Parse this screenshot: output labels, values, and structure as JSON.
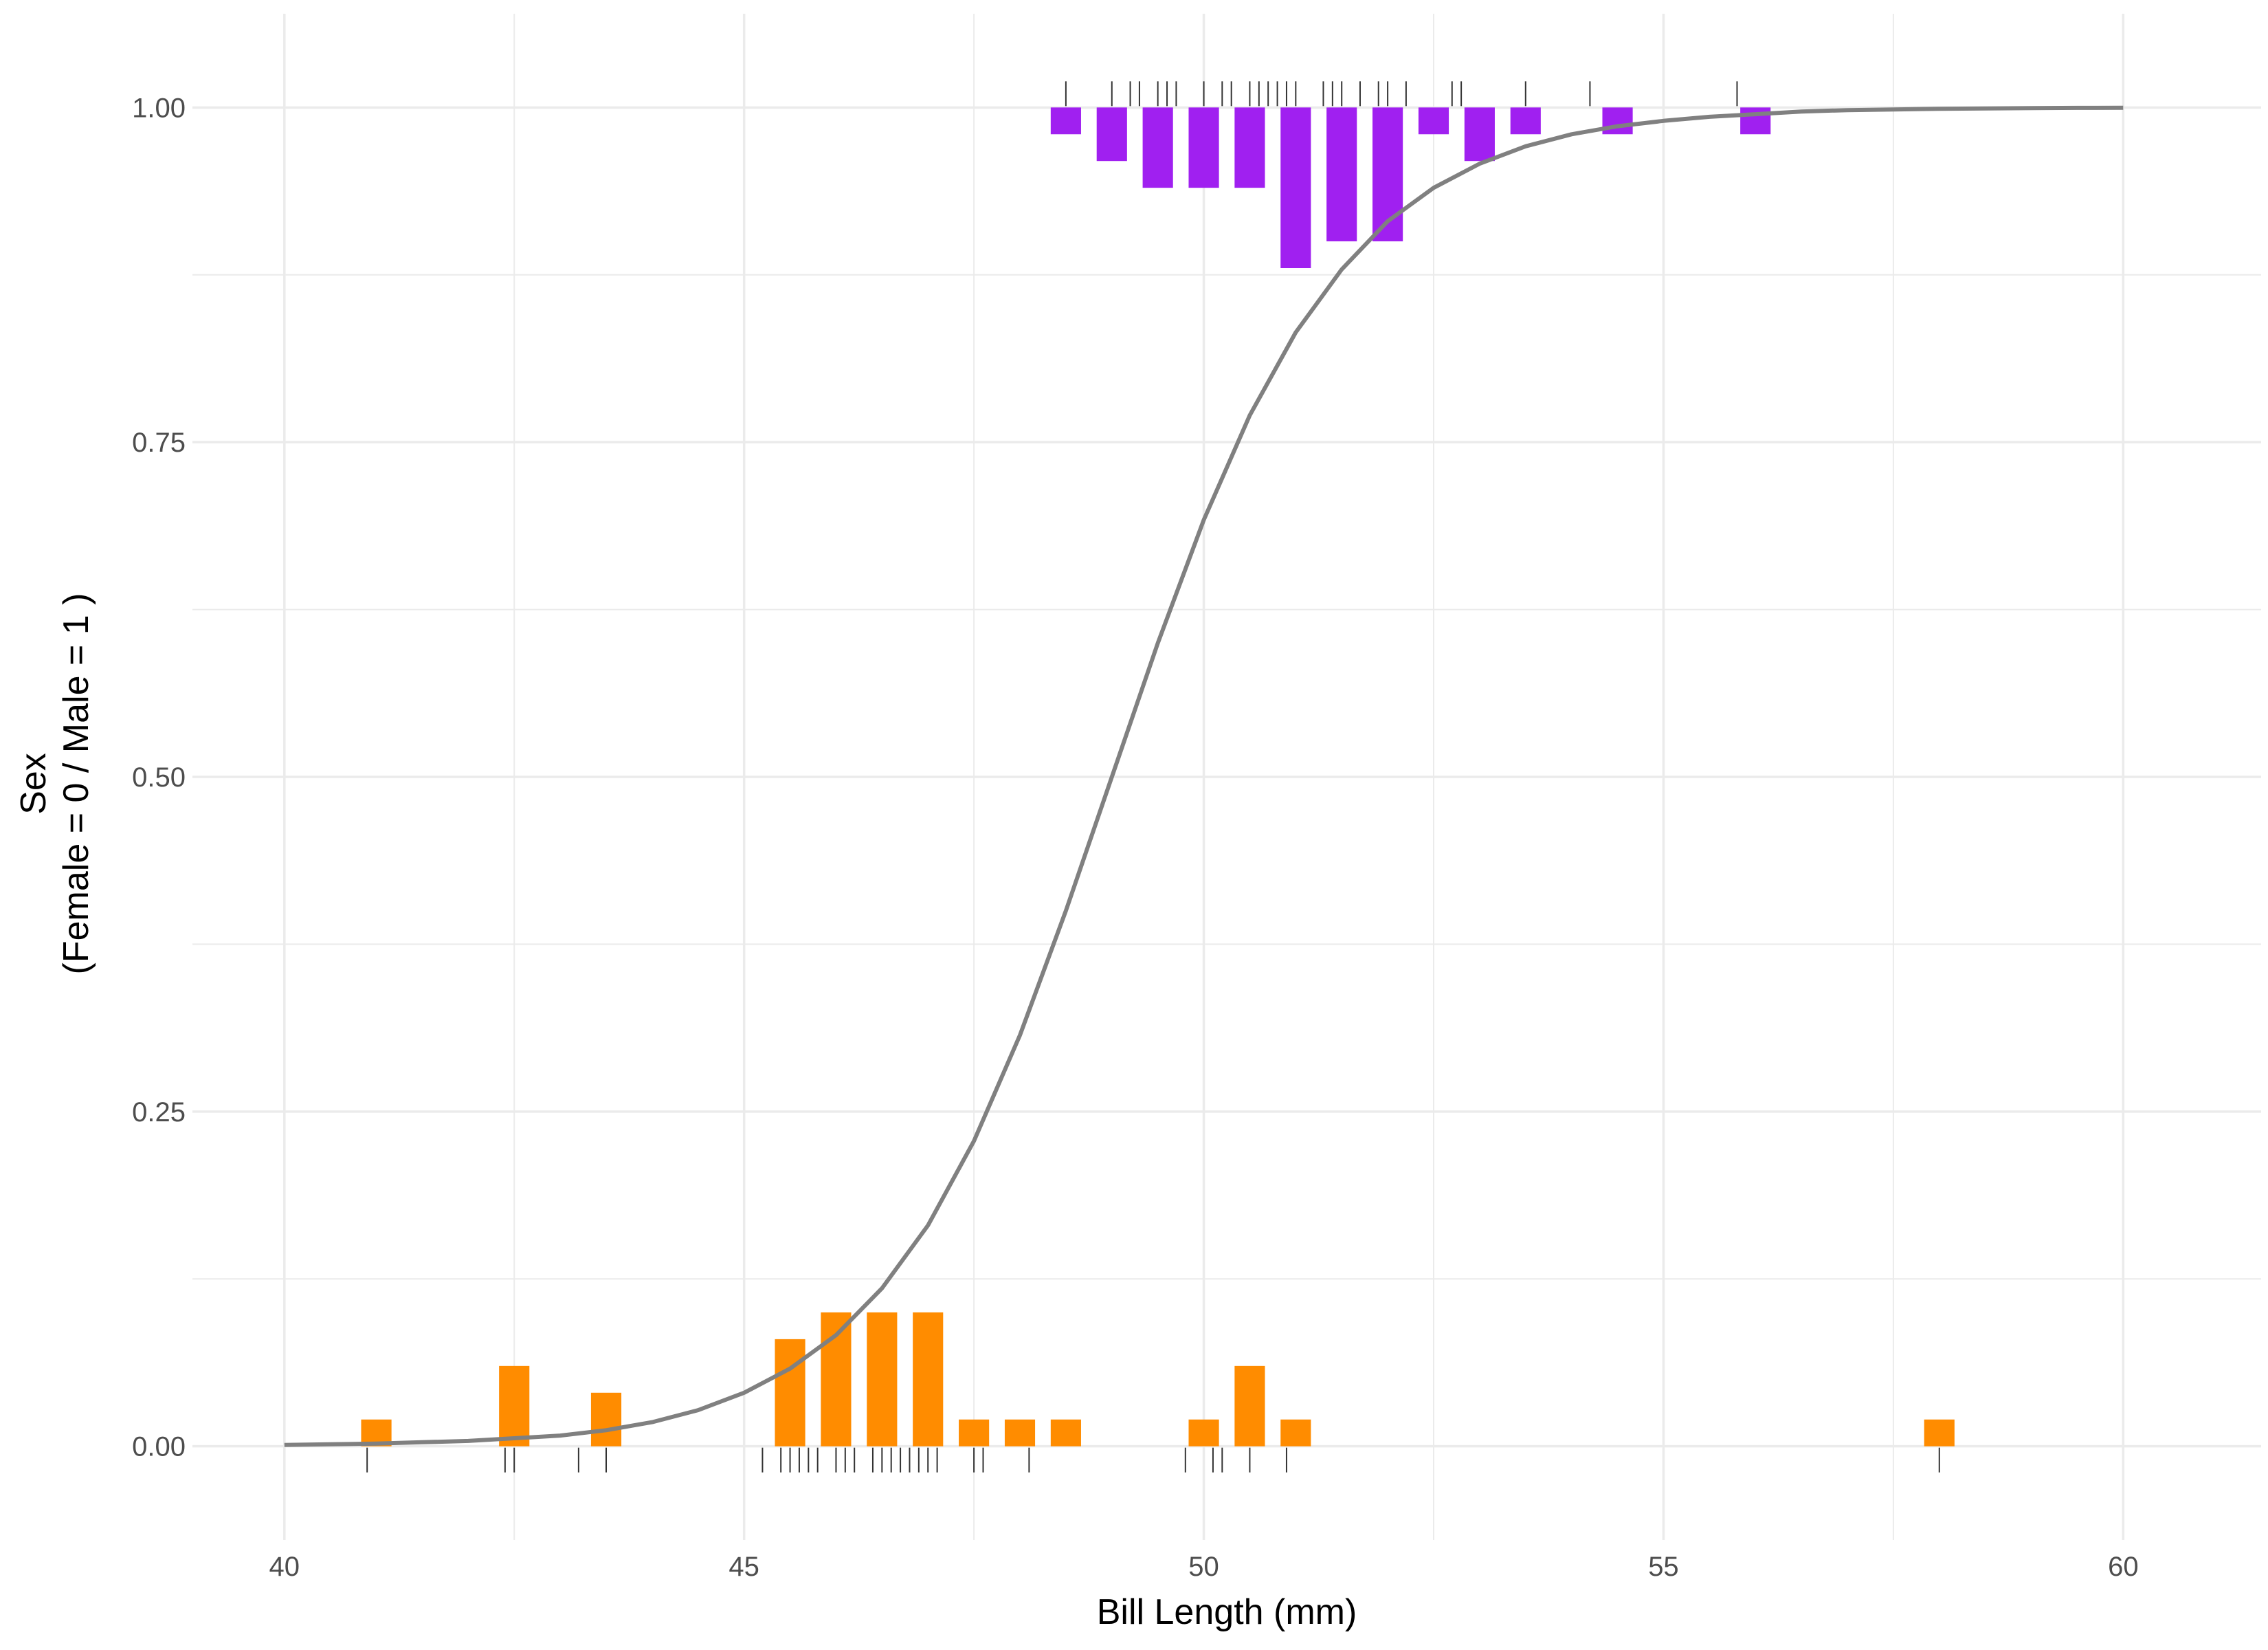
{
  "chart_data": {
    "type": "line",
    "title": "",
    "xlabel": "Bill Length (mm)",
    "ylabel_lines": [
      "Sex",
      "(Female = 0 / Male = 1 )"
    ],
    "xlim": [
      39,
      61.5
    ],
    "ylim": [
      -0.07,
      1.07
    ],
    "x_ticks": [
      40,
      45,
      50,
      55,
      60
    ],
    "x_tick_labels": [
      "40",
      "45",
      "50",
      "55",
      "60"
    ],
    "y_ticks": [
      0,
      0.25,
      0.5,
      0.75,
      1
    ],
    "y_tick_labels": [
      "0.00",
      "0.25",
      "0.50",
      "0.75",
      "1.00"
    ],
    "x_minor": [
      42.5,
      47.5,
      52.5,
      57.5
    ],
    "y_minor": [
      0.125,
      0.375,
      0.625,
      0.875
    ],
    "grid": true,
    "colors": {
      "curve": "#808080",
      "female_bars": "#FF8C00",
      "male_bars": "#A020F0",
      "rug": "#333333",
      "grid": "#ebebeb"
    },
    "logistic_curve": {
      "name": "fitted probability",
      "x": [
        40,
        40.5,
        41,
        41.5,
        42,
        42.5,
        43,
        43.5,
        44,
        44.5,
        45,
        45.5,
        46,
        46.5,
        47,
        47.5,
        48,
        48.5,
        49,
        49.5,
        50,
        50.5,
        51,
        51.5,
        52,
        52.5,
        53,
        53.5,
        54,
        54.5,
        55,
        55.5,
        56,
        56.5,
        57,
        57.5,
        58,
        58.5,
        59,
        59.5,
        60
      ],
      "y": [
        0.001,
        0.0015,
        0.002,
        0.003,
        0.004,
        0.006,
        0.008,
        0.012,
        0.018,
        0.027,
        0.04,
        0.058,
        0.083,
        0.118,
        0.165,
        0.228,
        0.307,
        0.4,
        0.5,
        0.6,
        0.692,
        0.77,
        0.832,
        0.879,
        0.915,
        0.94,
        0.958,
        0.971,
        0.98,
        0.986,
        0.99,
        0.993,
        0.995,
        0.997,
        0.998,
        0.9985,
        0.999,
        0.9993,
        0.9995,
        0.9997,
        0.9998
      ]
    },
    "female_histogram": {
      "name": "Female",
      "bin_width": 0.5,
      "bar_width": 0.33,
      "bin_centers": [
        41,
        42.5,
        43.5,
        45.5,
        46,
        46.5,
        47,
        47.5,
        48,
        48.5,
        50,
        50.5,
        51,
        58
      ],
      "heights": [
        0.02,
        0.06,
        0.04,
        0.08,
        0.1,
        0.1,
        0.1,
        0.02,
        0.02,
        0.02,
        0.02,
        0.06,
        0.02,
        0.02
      ]
    },
    "male_histogram": {
      "name": "Male",
      "bin_width": 0.5,
      "bar_width": 0.33,
      "bin_centers": [
        48.5,
        49,
        49.5,
        50,
        50.5,
        51,
        51.5,
        52,
        52.5,
        53,
        53.5,
        54.5,
        56
      ],
      "heights": [
        0.02,
        0.04,
        0.06,
        0.06,
        0.06,
        0.12,
        0.1,
        0.1,
        0.02,
        0.04,
        0.02,
        0.02,
        0.02
      ]
    },
    "female_rug_x": [
      40.9,
      42.4,
      42.5,
      43.2,
      43.5,
      45.2,
      45.4,
      45.5,
      45.6,
      45.7,
      45.8,
      46.0,
      46.1,
      46.2,
      46.4,
      46.5,
      46.6,
      46.7,
      46.8,
      46.9,
      47.0,
      47.1,
      47.5,
      47.6,
      48.1,
      49.8,
      50.1,
      50.2,
      50.5,
      50.9,
      58.0
    ],
    "male_rug_x": [
      48.5,
      49.0,
      49.2,
      49.3,
      49.5,
      49.6,
      49.7,
      50.0,
      50.2,
      50.3,
      50.5,
      50.6,
      50.7,
      50.8,
      50.9,
      51.0,
      51.3,
      51.4,
      51.5,
      51.7,
      51.9,
      52.0,
      52.2,
      52.7,
      52.8,
      53.5,
      54.2,
      55.8
    ]
  }
}
